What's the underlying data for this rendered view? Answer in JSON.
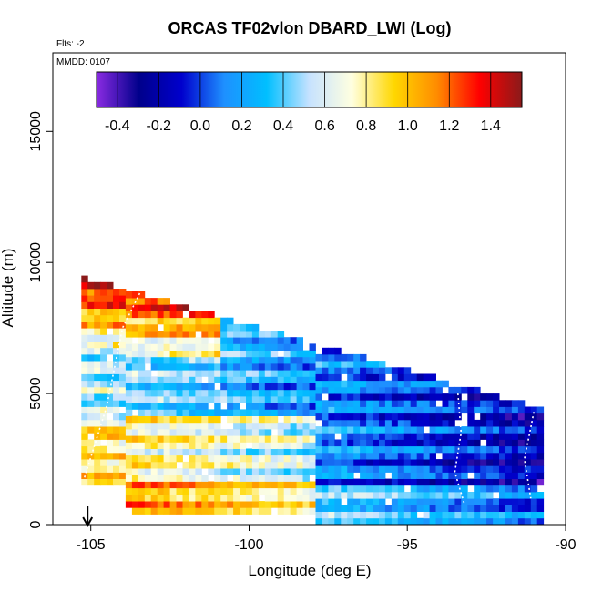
{
  "chart_data": {
    "type": "heatmap",
    "title": "ORCAS TF02vlon DBARD_LWI (Log)",
    "subtitle_flts": "Flts: -2",
    "subtitle_mmdd": "MMDD: 0107",
    "xlabel": "Longitude (deg E)",
    "ylabel": "Altitude (m)",
    "xlim": [
      -106.2,
      -90
    ],
    "ylim": [
      0,
      18000
    ],
    "xticks": [
      -105,
      -100,
      -95,
      -90
    ],
    "xtick_labels": [
      "-105",
      "-100",
      "-95",
      "-90"
    ],
    "yticks": [
      0,
      5000,
      10000,
      15000
    ],
    "ytick_labels": [
      "0",
      "5000",
      "10000",
      "15000"
    ],
    "colorbar": {
      "range": [
        -0.5,
        1.55
      ],
      "ticks": [
        -0.4,
        -0.2,
        0.0,
        0.2,
        0.4,
        0.6,
        0.8,
        1.0,
        1.2,
        1.4
      ],
      "tick_labels": [
        "-0.4",
        "-0.2",
        "0.0",
        "0.2",
        "0.4",
        "0.6",
        "0.8",
        "1.0",
        "1.2",
        "1.4"
      ],
      "colors": [
        "#8a2be2",
        "#00008b",
        "#0000cd",
        "#1e90ff",
        "#00bfff",
        "#c6e2ff",
        "#ffffe0",
        "#ffd700",
        "#ff8c00",
        "#ff0000",
        "#8b1a1a"
      ]
    },
    "arrow_marker": {
      "longitude": -105.1,
      "direction": "down"
    },
    "data_region": {
      "lon_range": [
        -105.3,
        -90.8
      ],
      "top_altitude_west": 9300,
      "top_altitude_east": 4300,
      "bottom_altitude": 0,
      "features": [
        {
          "lon": [
            -104,
            -101.5
          ],
          "alt": [
            6800,
            9200
          ],
          "value_range": [
            1.2,
            1.45
          ],
          "note": "red band near top-west"
        },
        {
          "lon": [
            -100,
            -95
          ],
          "alt": [
            3000,
            6000
          ],
          "value_range": [
            0.1,
            0.3
          ],
          "note": "light-blue centre"
        },
        {
          "lon": [
            -93,
            -90.8
          ],
          "alt": [
            1000,
            4500
          ],
          "value_range": [
            -0.35,
            -0.2
          ],
          "note": "dark blue east"
        },
        {
          "lon": [
            -105.2,
            -98
          ],
          "alt": [
            1500,
            4000
          ],
          "value_range": [
            0.8,
            1.0
          ],
          "note": "yellow/orange low west"
        }
      ]
    }
  }
}
